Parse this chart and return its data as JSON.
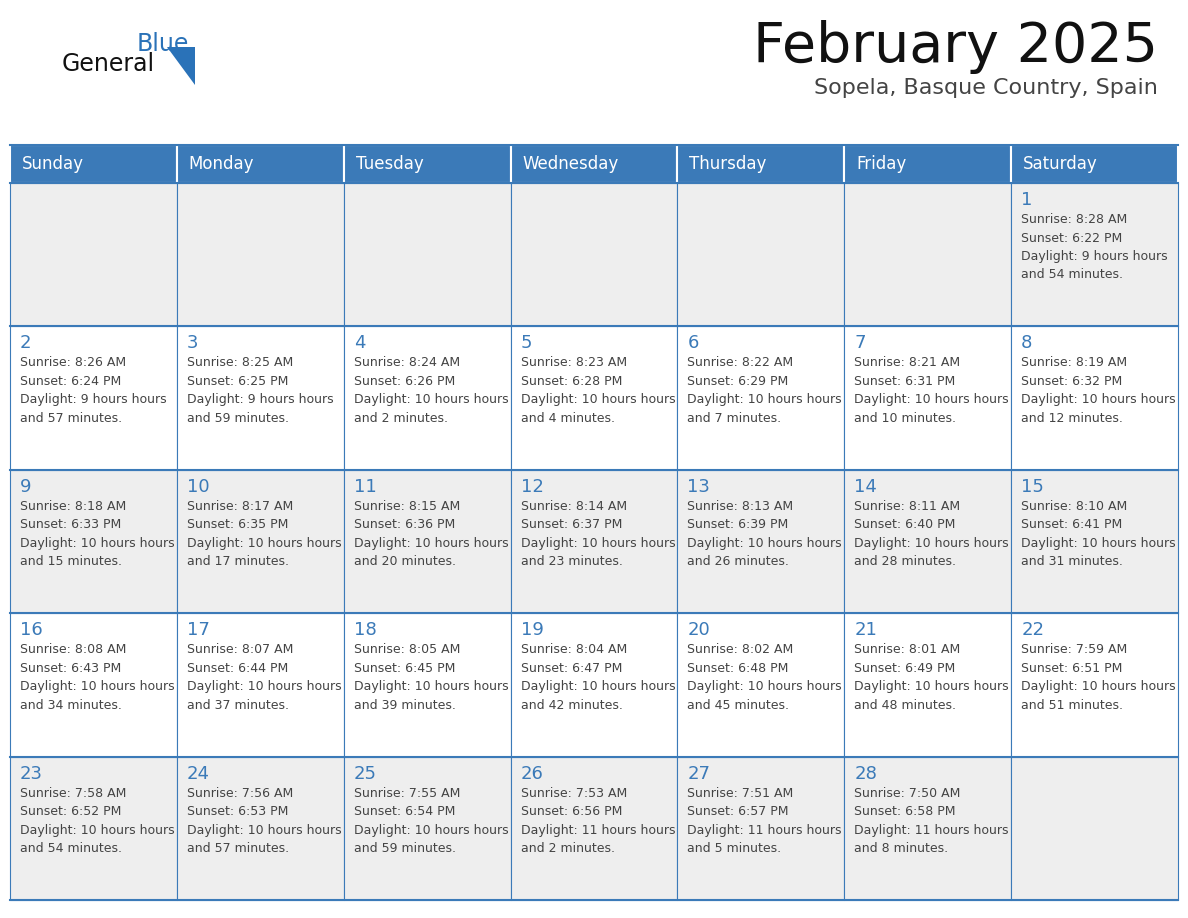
{
  "title": "February 2025",
  "subtitle": "Sopela, Basque Country, Spain",
  "days_of_week": [
    "Sunday",
    "Monday",
    "Tuesday",
    "Wednesday",
    "Thursday",
    "Friday",
    "Saturday"
  ],
  "header_bg": "#3b7ab8",
  "header_text": "#ffffff",
  "cell_bg_row0": "#eeeeee",
  "cell_bg_row1": "#ffffff",
  "cell_bg_row2": "#eeeeee",
  "cell_bg_row3": "#ffffff",
  "cell_bg_row4": "#eeeeee",
  "cell_border": "#3b7ab8",
  "day_number_color": "#3b7ab8",
  "info_text_color": "#444444",
  "title_color": "#111111",
  "subtitle_color": "#444444",
  "logo_general_color": "#111111",
  "logo_blue_color": "#2a72b8",
  "calendar_data": [
    {
      "day": 1,
      "col": 6,
      "row": 0,
      "sunrise": "8:28 AM",
      "sunset": "6:22 PM",
      "daylight": "9 hours and 54 minutes."
    },
    {
      "day": 2,
      "col": 0,
      "row": 1,
      "sunrise": "8:26 AM",
      "sunset": "6:24 PM",
      "daylight": "9 hours and 57 minutes."
    },
    {
      "day": 3,
      "col": 1,
      "row": 1,
      "sunrise": "8:25 AM",
      "sunset": "6:25 PM",
      "daylight": "9 hours and 59 minutes."
    },
    {
      "day": 4,
      "col": 2,
      "row": 1,
      "sunrise": "8:24 AM",
      "sunset": "6:26 PM",
      "daylight": "10 hours and 2 minutes."
    },
    {
      "day": 5,
      "col": 3,
      "row": 1,
      "sunrise": "8:23 AM",
      "sunset": "6:28 PM",
      "daylight": "10 hours and 4 minutes."
    },
    {
      "day": 6,
      "col": 4,
      "row": 1,
      "sunrise": "8:22 AM",
      "sunset": "6:29 PM",
      "daylight": "10 hours and 7 minutes."
    },
    {
      "day": 7,
      "col": 5,
      "row": 1,
      "sunrise": "8:21 AM",
      "sunset": "6:31 PM",
      "daylight": "10 hours and 10 minutes."
    },
    {
      "day": 8,
      "col": 6,
      "row": 1,
      "sunrise": "8:19 AM",
      "sunset": "6:32 PM",
      "daylight": "10 hours and 12 minutes."
    },
    {
      "day": 9,
      "col": 0,
      "row": 2,
      "sunrise": "8:18 AM",
      "sunset": "6:33 PM",
      "daylight": "10 hours and 15 minutes."
    },
    {
      "day": 10,
      "col": 1,
      "row": 2,
      "sunrise": "8:17 AM",
      "sunset": "6:35 PM",
      "daylight": "10 hours and 17 minutes."
    },
    {
      "day": 11,
      "col": 2,
      "row": 2,
      "sunrise": "8:15 AM",
      "sunset": "6:36 PM",
      "daylight": "10 hours and 20 minutes."
    },
    {
      "day": 12,
      "col": 3,
      "row": 2,
      "sunrise": "8:14 AM",
      "sunset": "6:37 PM",
      "daylight": "10 hours and 23 minutes."
    },
    {
      "day": 13,
      "col": 4,
      "row": 2,
      "sunrise": "8:13 AM",
      "sunset": "6:39 PM",
      "daylight": "10 hours and 26 minutes."
    },
    {
      "day": 14,
      "col": 5,
      "row": 2,
      "sunrise": "8:11 AM",
      "sunset": "6:40 PM",
      "daylight": "10 hours and 28 minutes."
    },
    {
      "day": 15,
      "col": 6,
      "row": 2,
      "sunrise": "8:10 AM",
      "sunset": "6:41 PM",
      "daylight": "10 hours and 31 minutes."
    },
    {
      "day": 16,
      "col": 0,
      "row": 3,
      "sunrise": "8:08 AM",
      "sunset": "6:43 PM",
      "daylight": "10 hours and 34 minutes."
    },
    {
      "day": 17,
      "col": 1,
      "row": 3,
      "sunrise": "8:07 AM",
      "sunset": "6:44 PM",
      "daylight": "10 hours and 37 minutes."
    },
    {
      "day": 18,
      "col": 2,
      "row": 3,
      "sunrise": "8:05 AM",
      "sunset": "6:45 PM",
      "daylight": "10 hours and 39 minutes."
    },
    {
      "day": 19,
      "col": 3,
      "row": 3,
      "sunrise": "8:04 AM",
      "sunset": "6:47 PM",
      "daylight": "10 hours and 42 minutes."
    },
    {
      "day": 20,
      "col": 4,
      "row": 3,
      "sunrise": "8:02 AM",
      "sunset": "6:48 PM",
      "daylight": "10 hours and 45 minutes."
    },
    {
      "day": 21,
      "col": 5,
      "row": 3,
      "sunrise": "8:01 AM",
      "sunset": "6:49 PM",
      "daylight": "10 hours and 48 minutes."
    },
    {
      "day": 22,
      "col": 6,
      "row": 3,
      "sunrise": "7:59 AM",
      "sunset": "6:51 PM",
      "daylight": "10 hours and 51 minutes."
    },
    {
      "day": 23,
      "col": 0,
      "row": 4,
      "sunrise": "7:58 AM",
      "sunset": "6:52 PM",
      "daylight": "10 hours and 54 minutes."
    },
    {
      "day": 24,
      "col": 1,
      "row": 4,
      "sunrise": "7:56 AM",
      "sunset": "6:53 PM",
      "daylight": "10 hours and 57 minutes."
    },
    {
      "day": 25,
      "col": 2,
      "row": 4,
      "sunrise": "7:55 AM",
      "sunset": "6:54 PM",
      "daylight": "10 hours and 59 minutes."
    },
    {
      "day": 26,
      "col": 3,
      "row": 4,
      "sunrise": "7:53 AM",
      "sunset": "6:56 PM",
      "daylight": "11 hours and 2 minutes."
    },
    {
      "day": 27,
      "col": 4,
      "row": 4,
      "sunrise": "7:51 AM",
      "sunset": "6:57 PM",
      "daylight": "11 hours and 5 minutes."
    },
    {
      "day": 28,
      "col": 5,
      "row": 4,
      "sunrise": "7:50 AM",
      "sunset": "6:58 PM",
      "daylight": "11 hours and 8 minutes."
    }
  ]
}
